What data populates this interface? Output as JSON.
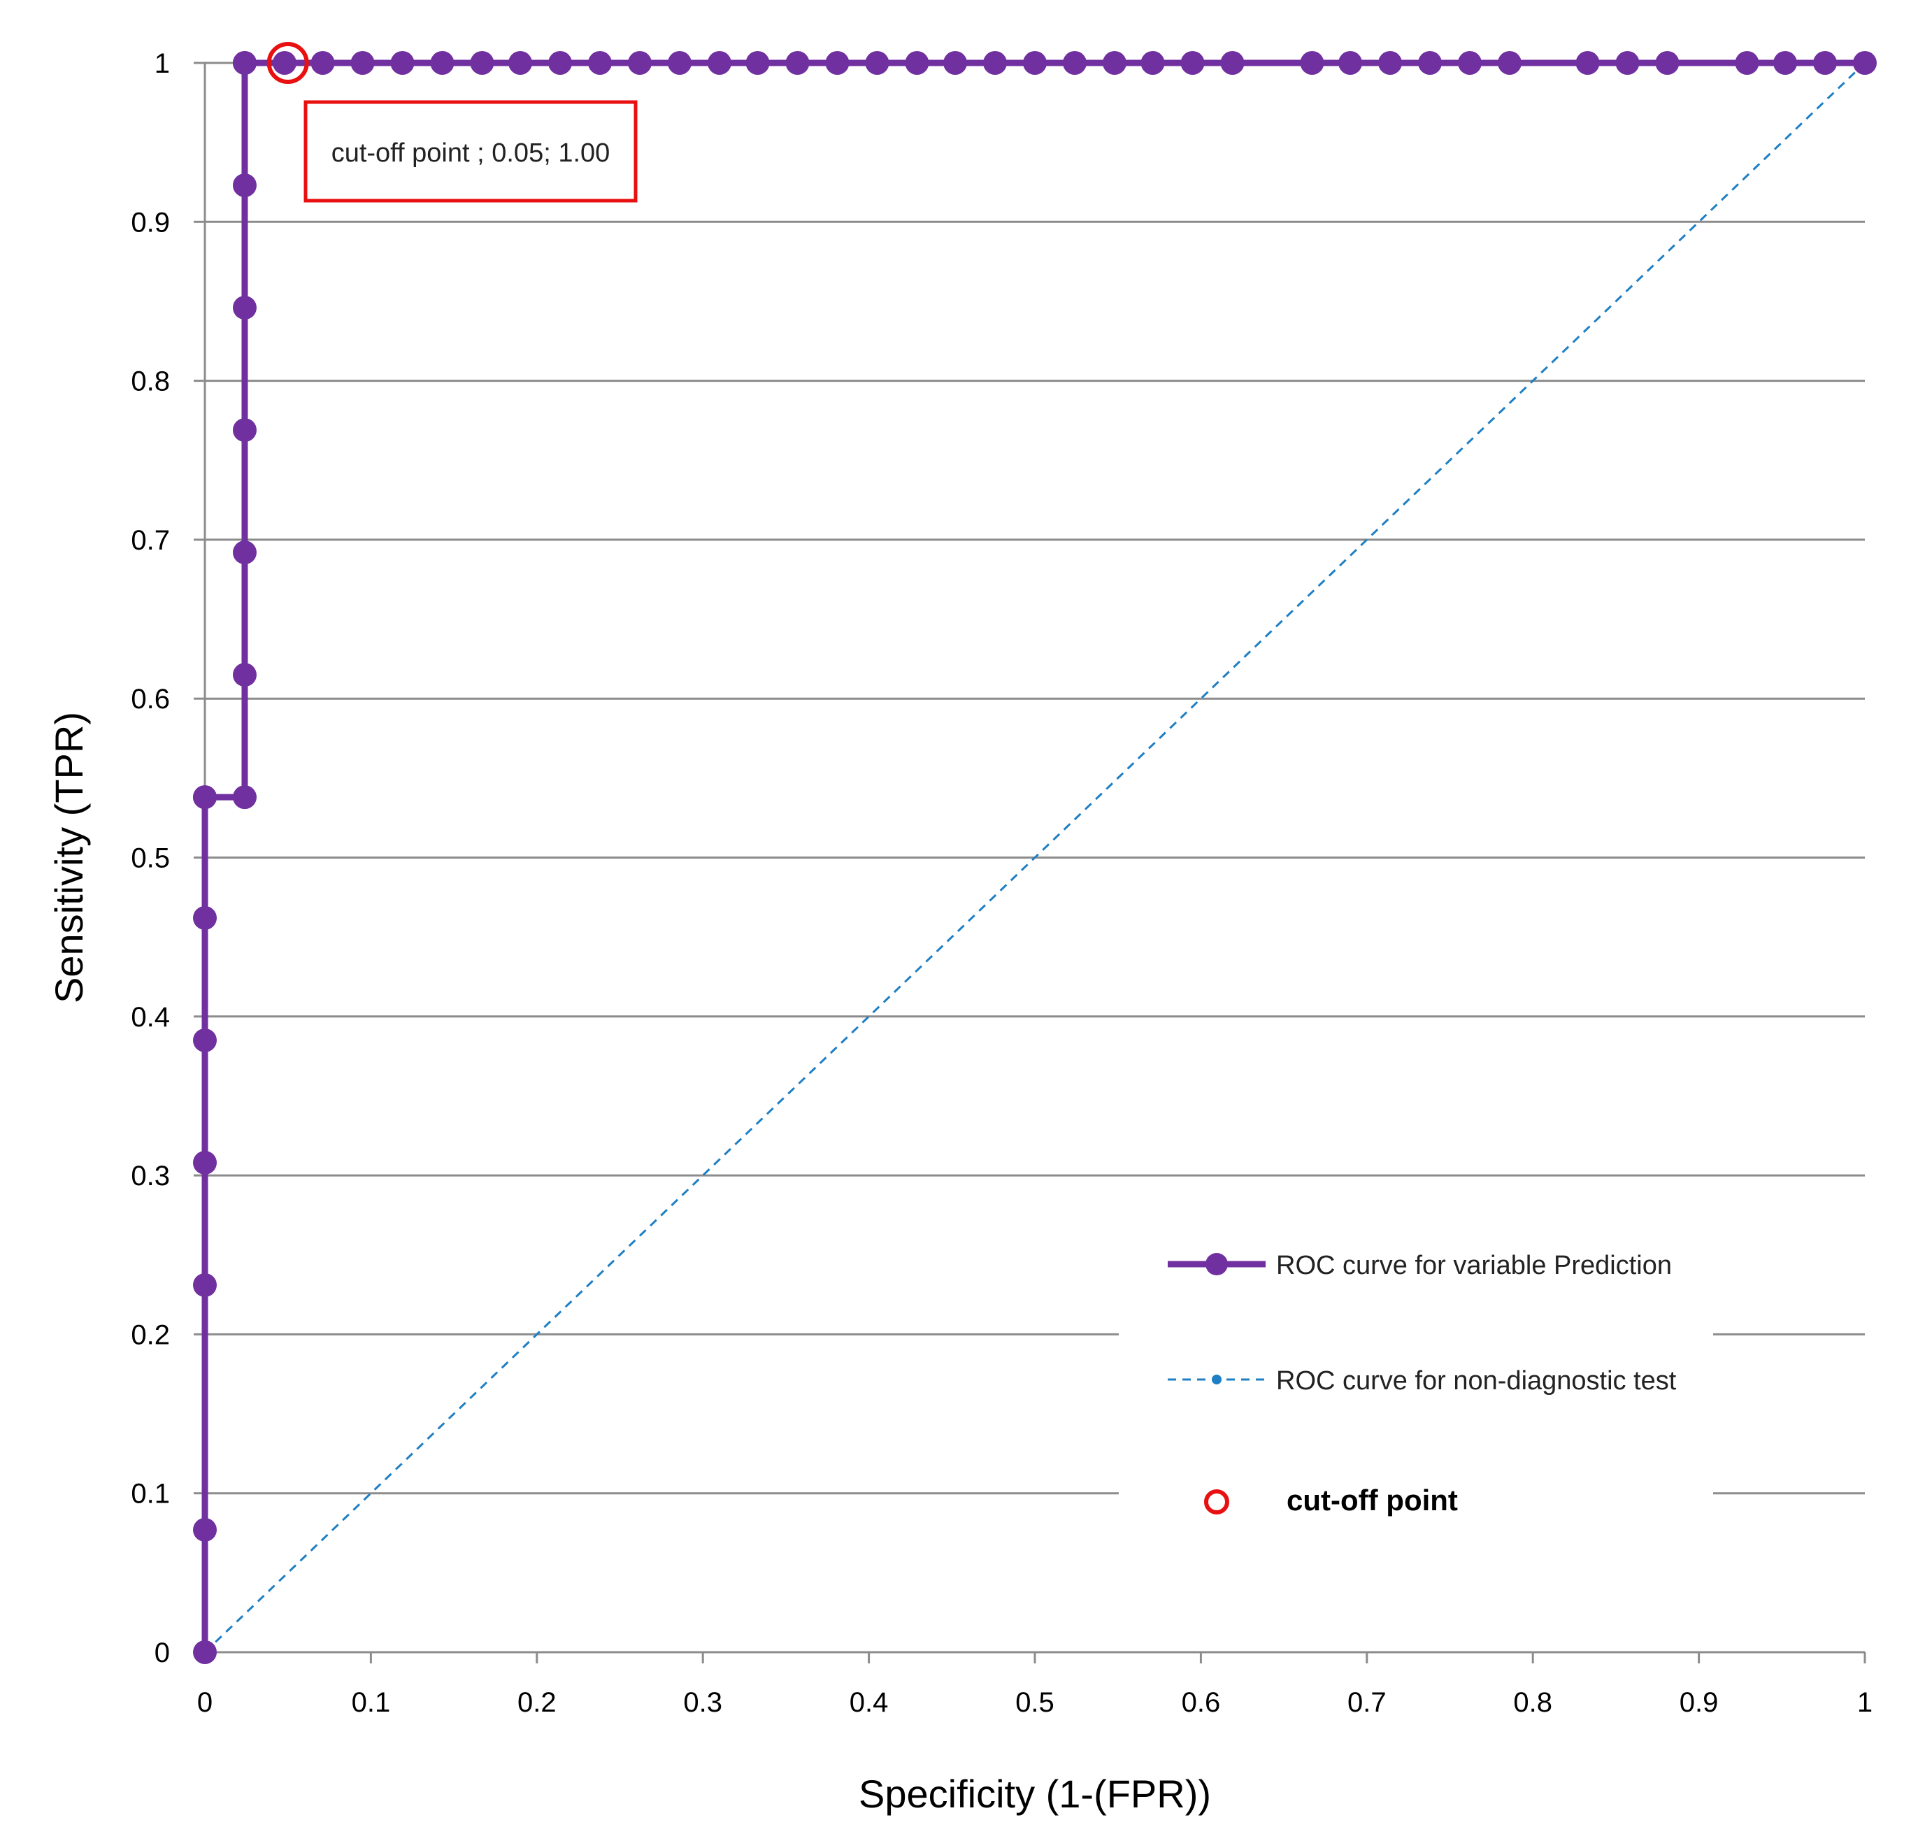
{
  "chart_data": {
    "type": "line",
    "xlabel": "Specificity (1-(FPR))",
    "ylabel": "Sensitivity (TPR)",
    "xlim": [
      0,
      1
    ],
    "ylim": [
      0,
      1
    ],
    "x_ticks": [
      "0",
      "0.1",
      "0.2",
      "0.3",
      "0.4",
      "0.5",
      "0.6",
      "0.7",
      "0.8",
      "0.9",
      "1"
    ],
    "y_ticks": [
      "0",
      "0.1",
      "0.2",
      "0.3",
      "0.4",
      "0.5",
      "0.6",
      "0.7",
      "0.8",
      "0.9",
      "1"
    ],
    "grid": "horizontal",
    "legend_position": "bottom-right",
    "series": [
      {
        "name": "ROC curve for variable Prediction",
        "color": "#7030a0",
        "style": "solid-with-markers",
        "x": [
          0,
          0,
          0,
          0,
          0,
          0,
          0,
          0,
          0.024,
          0.024,
          0.024,
          0.024,
          0.024,
          0.024,
          0.024,
          0.024,
          0.048,
          0.071,
          0.095,
          0.119,
          0.143,
          0.167,
          0.19,
          0.214,
          0.238,
          0.262,
          0.286,
          0.31,
          0.333,
          0.357,
          0.381,
          0.405,
          0.429,
          0.452,
          0.476,
          0.5,
          0.524,
          0.548,
          0.571,
          0.595,
          0.619,
          0.667,
          0.69,
          0.714,
          0.738,
          0.762,
          0.786,
          0.833,
          0.857,
          0.881,
          0.929,
          0.952,
          0.976,
          1.0
        ],
        "y": [
          0,
          0.077,
          0.231,
          0.308,
          0.385,
          0.462,
          0.538,
          0.538,
          0.538,
          0.615,
          0.692,
          0.769,
          0.846,
          0.923,
          1.0,
          1.0,
          1.0,
          1.0,
          1.0,
          1.0,
          1.0,
          1.0,
          1.0,
          1.0,
          1.0,
          1.0,
          1.0,
          1.0,
          1.0,
          1.0,
          1.0,
          1.0,
          1.0,
          1.0,
          1.0,
          1.0,
          1.0,
          1.0,
          1.0,
          1.0,
          1.0,
          1.0,
          1.0,
          1.0,
          1.0,
          1.0,
          1.0,
          1.0,
          1.0,
          1.0,
          1.0,
          1.0,
          1.0,
          1.0
        ]
      },
      {
        "name": "ROC curve for non-diagnostic test",
        "color": "#1f7fc4",
        "style": "dashed",
        "x": [
          0,
          1
        ],
        "y": [
          0,
          1
        ]
      }
    ],
    "cutoff": {
      "name": "cut-off point",
      "x": 0.05,
      "y": 1.0,
      "color": "#e81010",
      "annotation": "cut-off point ; 0.05; 1.00"
    }
  }
}
